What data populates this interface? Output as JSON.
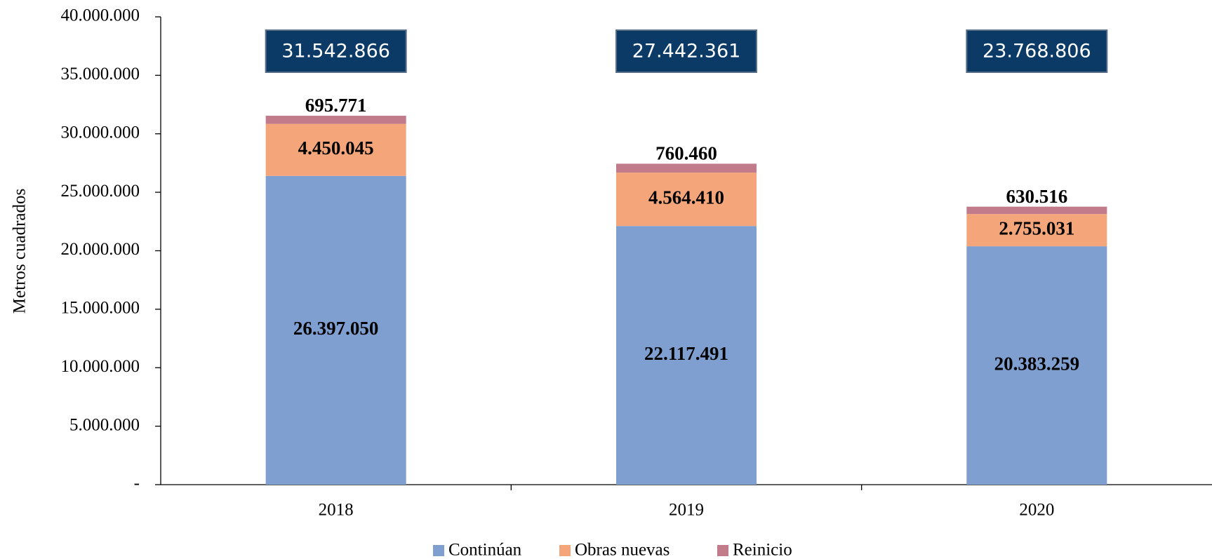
{
  "chart_data": {
    "type": "stacked_bar",
    "y_axis_label": "Metros cuadrados",
    "categories": [
      "2018",
      "2019",
      "2020"
    ],
    "series": [
      {
        "name": "Continúan",
        "color": "#7f9fd1",
        "values": [
          26397050,
          22117491,
          20383259
        ],
        "value_labels": [
          "26.397.050",
          "22.117.491",
          "20.383.259"
        ]
      },
      {
        "name": "Obras nuevas",
        "color": "#f4a67a",
        "values": [
          4450045,
          4564410,
          2755031
        ],
        "value_labels": [
          "4.450.045",
          "4.564.410",
          "2.755.031"
        ]
      },
      {
        "name": "Reinicio",
        "color": "#c27b8a",
        "values": [
          695771,
          760460,
          630516
        ],
        "value_labels": [
          "695.771",
          "760.460",
          "630.516"
        ]
      }
    ],
    "totals": [
      31542866,
      27442361,
      23768806
    ],
    "total_labels": [
      "31.542.866",
      "27.442.361",
      "23.768.806"
    ],
    "total_box_color": "#0c3a66",
    "ylim": [
      0,
      40000000
    ],
    "yticks": [
      {
        "value": 0,
        "label": "-"
      },
      {
        "value": 5000000,
        "label": "5.000.000"
      },
      {
        "value": 10000000,
        "label": "10.000.000"
      },
      {
        "value": 15000000,
        "label": "15.000.000"
      },
      {
        "value": 20000000,
        "label": "20.000.000"
      },
      {
        "value": 25000000,
        "label": "25.000.000"
      },
      {
        "value": 30000000,
        "label": "30.000.000"
      },
      {
        "value": 35000000,
        "label": "35.000.000"
      },
      {
        "value": 40000000,
        "label": "40.000.000"
      }
    ],
    "legend": "bottom"
  }
}
